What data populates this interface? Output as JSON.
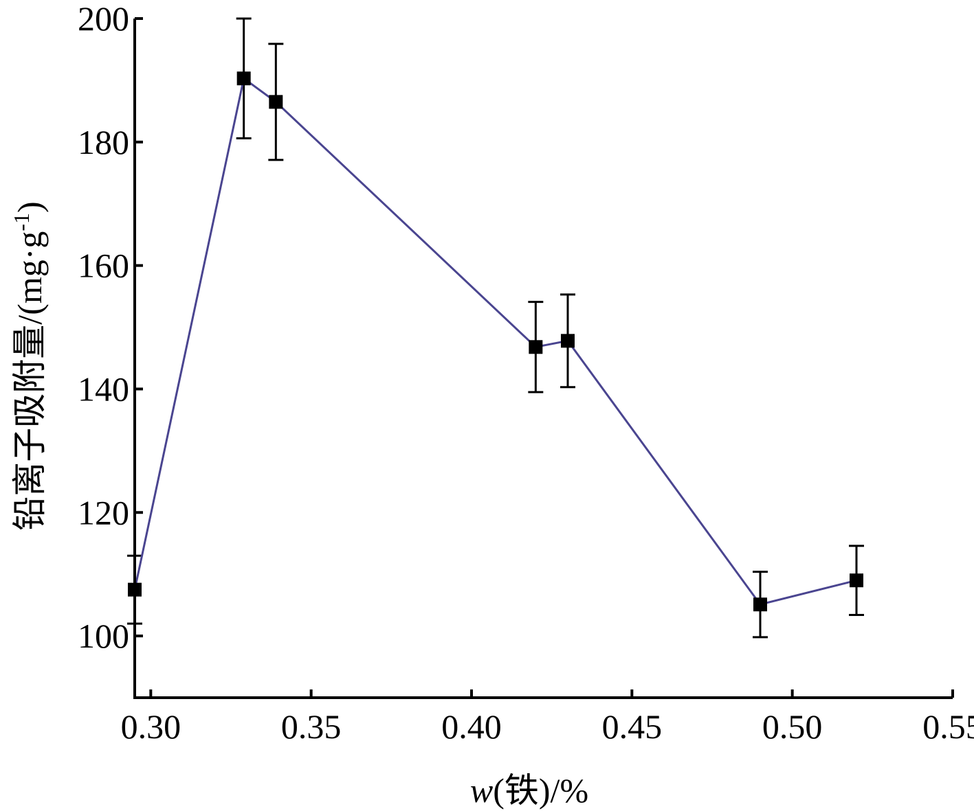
{
  "chart_data": {
    "type": "line",
    "xlabel": "w(铁)/%",
    "ylabel": "铅离子吸附量/(mg·g⁻¹)",
    "xlim": [
      0.295,
      0.55
    ],
    "ylim": [
      90,
      200
    ],
    "x_ticks": [
      "0.30",
      "0.35",
      "0.40",
      "0.45",
      "0.50",
      "0.55"
    ],
    "y_ticks": [
      "100",
      "120",
      "140",
      "160",
      "180",
      "200"
    ],
    "grid": false,
    "legend": "none",
    "series": [
      {
        "x": [
          0.295,
          0.329,
          0.339,
          0.42,
          0.43,
          0.49,
          0.52
        ],
        "y": [
          107.5,
          190.3,
          186.5,
          146.8,
          147.8,
          105.1,
          109.0
        ],
        "err": [
          5.5,
          9.7,
          9.4,
          7.3,
          7.5,
          5.3,
          5.6
        ]
      }
    ],
    "line_color": "#4a4590",
    "marker_color": "#000000",
    "marker": "square"
  }
}
